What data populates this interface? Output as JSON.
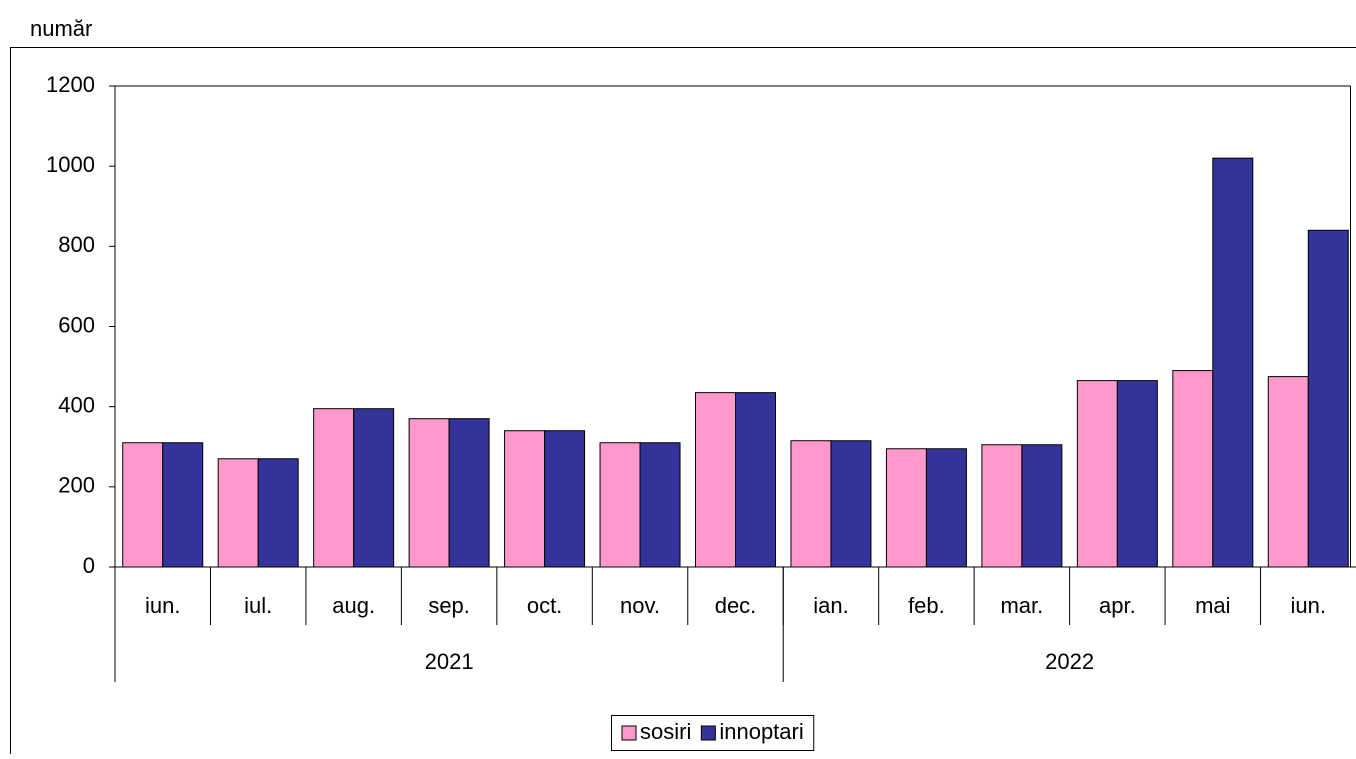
{
  "chart_data": {
    "type": "bar",
    "y_label": "număr",
    "categories": [
      "iun.",
      "iul.",
      "aug.",
      "sep.",
      "oct.",
      "nov.",
      "dec.",
      "ian.",
      "feb.",
      "mar.",
      "apr.",
      "mai",
      "iun."
    ],
    "groups": [
      {
        "label": "2021",
        "span": 7
      },
      {
        "label": "2022",
        "span": 6
      }
    ],
    "series": [
      {
        "name": "sosiri",
        "color": "#ff99cc",
        "values": [
          310,
          270,
          395,
          370,
          340,
          310,
          435,
          315,
          295,
          305,
          465,
          490,
          475
        ]
      },
      {
        "name": "innoptari",
        "color": "#333399",
        "values": [
          310,
          270,
          395,
          370,
          340,
          310,
          435,
          315,
          295,
          305,
          465,
          1020,
          840
        ]
      }
    ],
    "ylim": [
      0,
      1200
    ],
    "yticks": [
      0,
      200,
      400,
      600,
      800,
      1000,
      1200
    ],
    "legend": "bottom"
  }
}
